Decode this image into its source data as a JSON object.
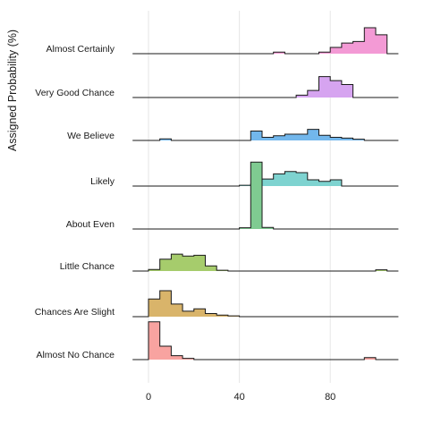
{
  "chart_data": {
    "type": "ridgeline",
    "ylabel": "Assigned Probability (%)",
    "xlabel": "",
    "xlim": [
      -7,
      107
    ],
    "xticks": [
      0,
      40,
      80
    ],
    "grid": true,
    "bin_width": 5,
    "series": [
      {
        "name": "Almost No Chance",
        "color": "#f8a3a0",
        "start": -5,
        "values": [
          0,
          9.6,
          3.4,
          1.0,
          0.3,
          0,
          0,
          0,
          0,
          0,
          0,
          0,
          0,
          0,
          0,
          0,
          0,
          0,
          0,
          0,
          0.5,
          0,
          0
        ]
      },
      {
        "name": "Chances Are Slight",
        "color": "#d9b46a",
        "start": -5,
        "values": [
          0,
          4.5,
          6.6,
          3.2,
          1.4,
          2.0,
          0.8,
          0.4,
          0.2,
          0,
          0,
          0,
          0,
          0,
          0,
          0,
          0,
          0,
          0,
          0,
          0,
          0,
          0
        ]
      },
      {
        "name": "Little Chance",
        "color": "#a6cc6c",
        "start": -5,
        "values": [
          0,
          0.4,
          3.0,
          4.3,
          3.8,
          4.0,
          1.3,
          0.2,
          0,
          0,
          0,
          0,
          0,
          0,
          0,
          0,
          0,
          0,
          0,
          0,
          0,
          0.3,
          0
        ]
      },
      {
        "name": "About Even",
        "color": "#7fcb91",
        "start": -5,
        "values": [
          0,
          0,
          0,
          0,
          0,
          0,
          0,
          0,
          0,
          0.3,
          17.0,
          0.4,
          0,
          0,
          0,
          0,
          0,
          0,
          0,
          0,
          0,
          0,
          0
        ]
      },
      {
        "name": "Likely",
        "color": "#7ed3d0",
        "start": -5,
        "values": [
          0,
          0,
          0,
          0,
          0,
          0,
          0,
          0,
          0,
          0.2,
          0.6,
          1.8,
          3.1,
          3.7,
          3.4,
          1.6,
          1.2,
          1.6,
          0,
          0,
          0,
          0,
          0
        ]
      },
      {
        "name": "We Believe",
        "color": "#72b7ec",
        "start": -5,
        "values": [
          0,
          0,
          0.4,
          0,
          0,
          0,
          0,
          0,
          0,
          0,
          2.4,
          0.8,
          1.2,
          1.6,
          1.6,
          2.8,
          1.3,
          0.8,
          0.6,
          0.3,
          0,
          0,
          0
        ]
      },
      {
        "name": "Very Good Chance",
        "color": "#d6a4f0",
        "start": -5,
        "values": [
          0,
          0,
          0,
          0,
          0,
          0,
          0,
          0,
          0,
          0,
          0,
          0,
          0,
          0,
          0.6,
          1.8,
          5.3,
          4.3,
          3.3,
          0,
          0,
          0,
          0
        ]
      },
      {
        "name": "Almost Certainly",
        "color": "#f39ad5",
        "start": -5,
        "values": [
          0,
          0,
          0,
          0,
          0,
          0,
          0,
          0,
          0,
          0,
          0,
          0,
          0.4,
          0,
          0,
          0,
          0.4,
          1.6,
          2.7,
          3.1,
          6.6,
          4.8,
          0
        ]
      }
    ]
  }
}
